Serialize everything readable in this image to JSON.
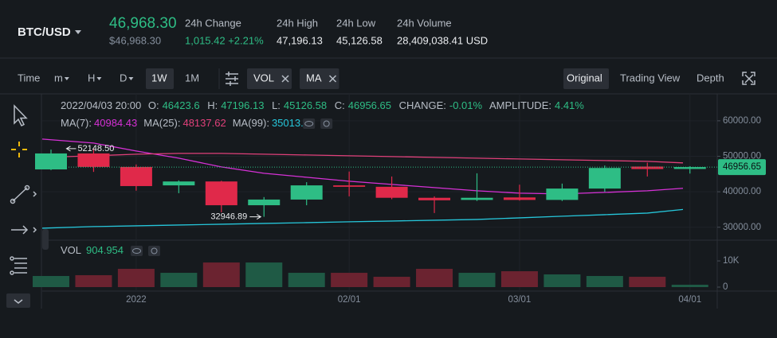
{
  "header": {
    "pair": "BTC/USD",
    "price": "46,968.30",
    "price_usd": "$46,968.30",
    "stats": [
      {
        "label": "24h Change",
        "value": "1,015.42 +2.21%"
      },
      {
        "label": "24h High",
        "value": "47,196.13"
      },
      {
        "label": "24h Low",
        "value": "45,126.58"
      },
      {
        "label": "24h Volume",
        "value": "28,409,038.41 USD"
      }
    ]
  },
  "toolbar": {
    "time": "Time",
    "intervals": [
      "m",
      "H",
      "D",
      "1W",
      "1M"
    ],
    "indicators": [
      "VOL",
      "MA"
    ],
    "views": [
      "Original",
      "Trading View",
      "Depth"
    ]
  },
  "chart_data": {
    "type": "candlestick",
    "info": {
      "time": "2022/04/03 20:00",
      "labels": [
        "O:",
        "H:",
        "L:",
        "C:",
        "CHANGE:",
        "AMPLITUDE:"
      ],
      "change": "-0.01%",
      "amplitude": "4.41%"
    },
    "categories": [
      null,
      null,
      "2022",
      null,
      null,
      null,
      null,
      "02/01",
      null,
      null,
      null,
      "03/01",
      null,
      null,
      null,
      "04/01"
    ],
    "open": [
      46300,
      50800,
      47000,
      41800,
      42900,
      36200,
      37800,
      41800,
      41400,
      38300,
      37700,
      38400,
      37700,
      40900,
      47100,
      46423.6
    ],
    "high": [
      51900,
      52148.5,
      47700,
      43200,
      43100,
      38500,
      42700,
      45700,
      44300,
      38700,
      45200,
      42000,
      42300,
      47400,
      48200,
      47196.13
    ],
    "low": [
      46100,
      45600,
      40300,
      39600,
      34200,
      32946.89,
      36200,
      38700,
      37900,
      34000,
      37400,
      37500,
      37400,
      40000,
      44300,
      45126.58
    ],
    "close": [
      50800,
      47000,
      41600,
      42900,
      36200,
      37800,
      41800,
      41400,
      38300,
      37600,
      38300,
      37700,
      40900,
      46700,
      46400,
      46956.65
    ],
    "high_label": "52148.50",
    "low_label": "32946.89",
    "up_color": "#2ebd85",
    "down_color": "#e0294a",
    "series": [
      {
        "name": "MA(7):",
        "color": "#d631d6",
        "values": [
          54843,
          53722,
          51480,
          49463,
          46996,
          45203,
          44082,
          42961,
          42064,
          41167,
          40270,
          39598,
          39374,
          39822,
          40270,
          40984.43
        ]
      },
      {
        "name": "MA(25):",
        "color": "#e0407a",
        "values": [
          49687,
          50135,
          50584,
          50808,
          50808,
          50584,
          50359,
          50135,
          49911,
          49687,
          49463,
          49239,
          49015,
          48790,
          48566,
          48137.62
        ]
      },
      {
        "name": "MA(99):",
        "color": "#26c6da",
        "values": [
          29733,
          30182,
          30406,
          30630,
          30854,
          31078,
          31302,
          31527,
          31751,
          31975,
          32199,
          32647,
          33096,
          33544,
          33992,
          35013.27
        ]
      }
    ],
    "ylim": [
      26800,
      66700
    ],
    "yticks": [
      {
        "value": 30000,
        "label": "30000.00"
      },
      {
        "value": 40000,
        "label": "40000.00"
      },
      {
        "value": 50000,
        "label": "50000.00"
      },
      {
        "value": 60000,
        "label": "60000.00"
      }
    ],
    "volume": {
      "name": "VOL",
      "values": [
        4242,
        4545,
        6970,
        5455,
        9394,
        9394,
        5455,
        5455,
        3939,
        6970,
        5455,
        6061,
        4848,
        4242,
        3939,
        904.954
      ],
      "up_color": "#1f5a45",
      "down_color": "#6b2330",
      "ylim": [
        0,
        17000
      ],
      "yticks": [
        0,
        {
          "value": 10000,
          "label": "10K"
        }
      ]
    }
  }
}
